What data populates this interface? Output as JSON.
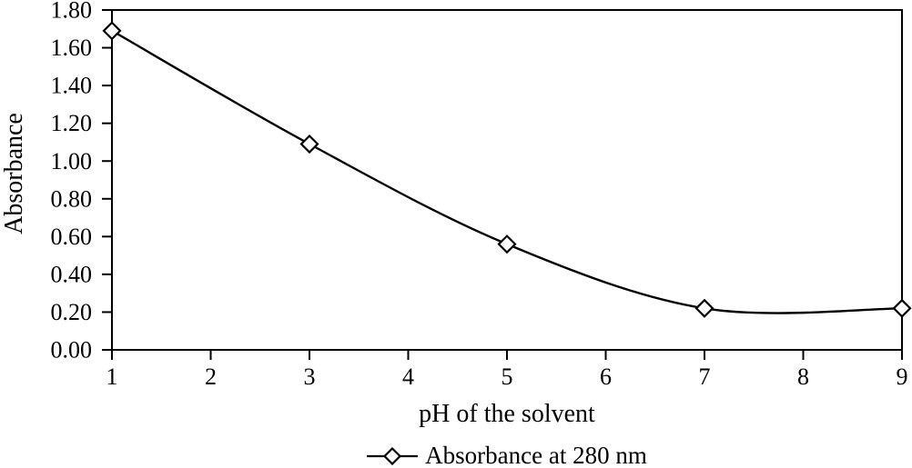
{
  "figure": {
    "background": "#ffffff",
    "ink_color": "#000000"
  },
  "chart_data": {
    "type": "line",
    "title": "",
    "xlabel": "pH of the solvent",
    "ylabel": "Absorbance",
    "x": [
      1,
      3,
      5,
      7,
      9
    ],
    "series": [
      {
        "name": "Absorbance at 280 nm",
        "values": [
          1.69,
          1.09,
          0.56,
          0.22,
          0.22
        ],
        "color": "#000000",
        "marker": "open-diamond",
        "line_style": "smooth"
      }
    ],
    "xlim": [
      1,
      9
    ],
    "ylim": [
      0,
      1.8
    ],
    "x_ticks": [
      "1",
      "2",
      "3",
      "4",
      "5",
      "6",
      "7",
      "8",
      "9"
    ],
    "y_ticks": [
      "0.00",
      "0.20",
      "0.40",
      "0.60",
      "0.80",
      "1.00",
      "1.20",
      "1.40",
      "1.60",
      "1.80"
    ],
    "grid": false,
    "legend_position": "bottom-center"
  }
}
